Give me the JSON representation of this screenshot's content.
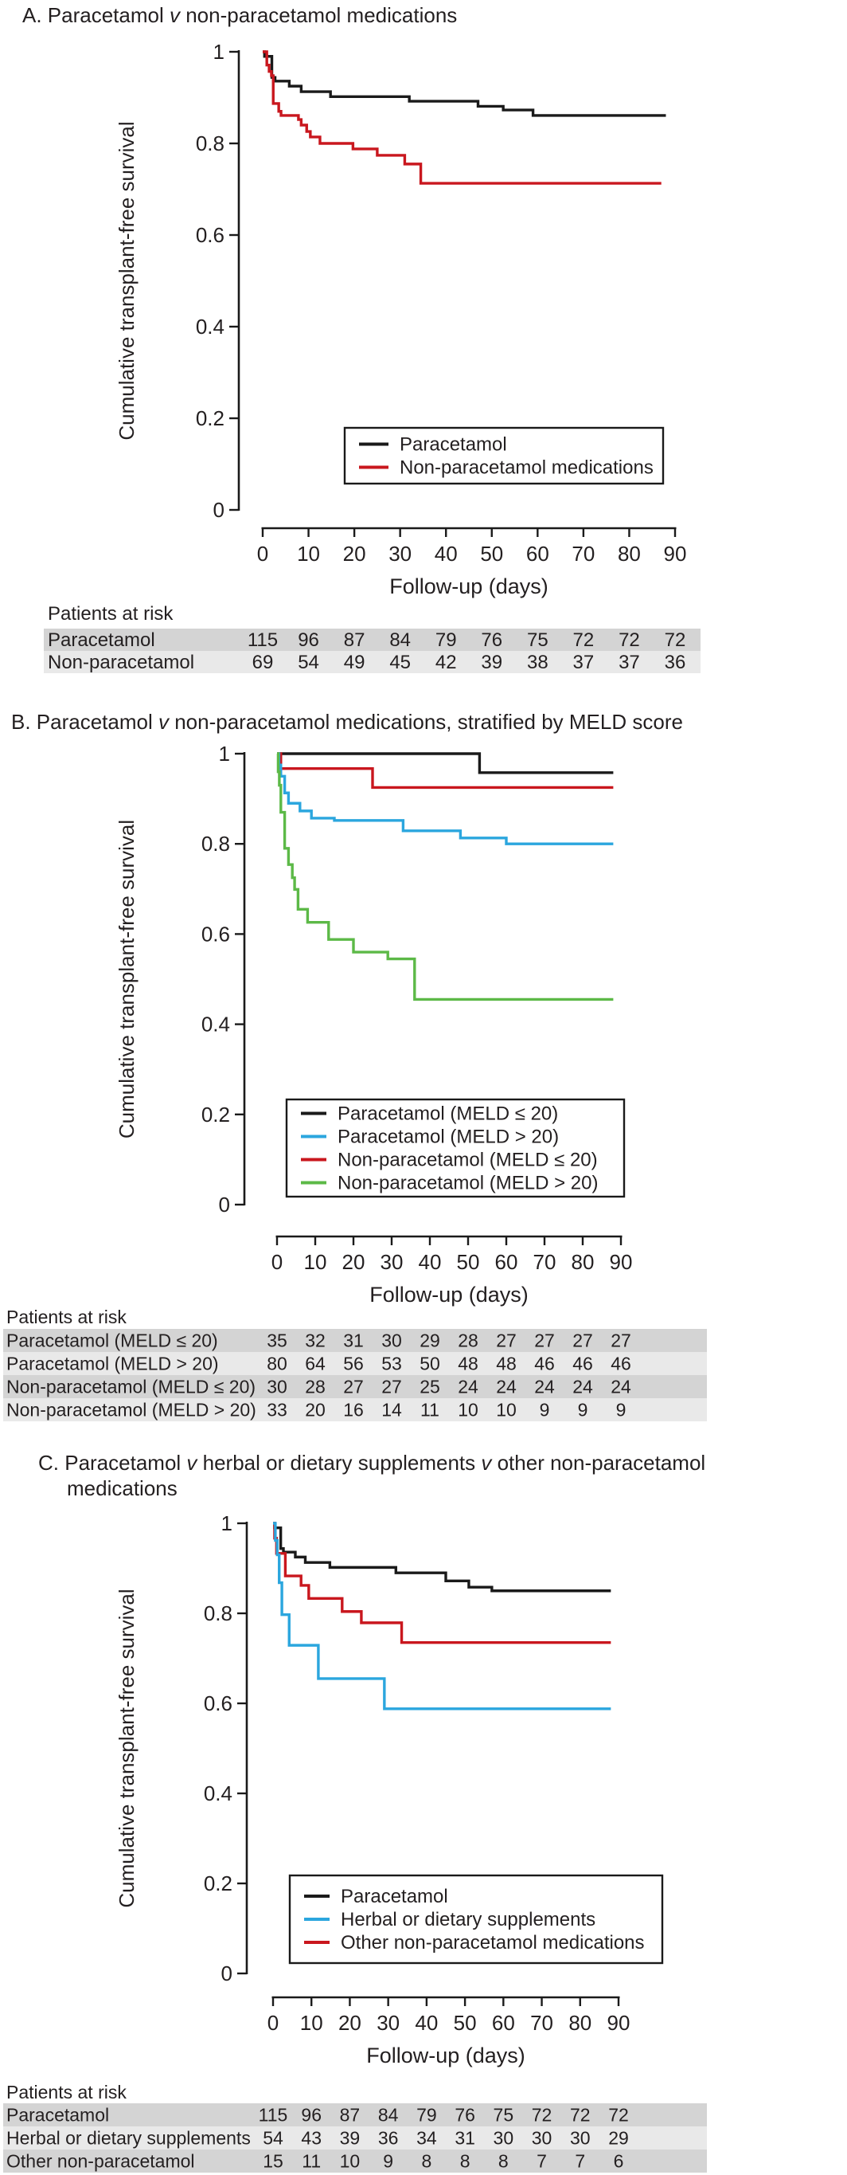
{
  "figure_type": "kaplan-meier-survival-figure",
  "colors": {
    "black": "#1a1a1a",
    "red": "#c9171e",
    "blue": "#2ba6de",
    "green": "#5cb947",
    "text": "#231f20",
    "row_dark": "#d4d4d4",
    "row_light": "#e9e9e9",
    "axis": "#1a1a1a"
  },
  "chart_data": [
    {
      "id": "A",
      "type": "line",
      "title_lines": [
        [
          {
            "text": "A. Paracetamol "
          },
          {
            "text": "v",
            "italic": true
          },
          {
            "text": " non-paracetamol medications"
          }
        ]
      ],
      "ylabel": "Cumulative transplant-free survival",
      "xlabel": "Follow-up (days)",
      "ylim": [
        0,
        1
      ],
      "yticks": [
        {
          "v": 1,
          "label": "1"
        },
        {
          "v": 0.8,
          "label": "0.8"
        },
        {
          "v": 0.6,
          "label": "0.6"
        },
        {
          "v": 0.4,
          "label": "0.4"
        },
        {
          "v": 0.2,
          "label": "0.2"
        },
        {
          "v": 0,
          "label": "0"
        }
      ],
      "xticks": [
        0,
        10,
        20,
        30,
        40,
        50,
        60,
        70,
        80,
        90
      ],
      "series": [
        {
          "name": "Paracetamol",
          "color": "black",
          "end_day": 88,
          "steps": [
            [
              0,
              1.0
            ],
            [
              0.4,
              0.99
            ],
            [
              2,
              0.944
            ],
            [
              2.7,
              0.936
            ],
            [
              5.8,
              0.925
            ],
            [
              8.4,
              0.913
            ],
            [
              14.8,
              0.902
            ],
            [
              32,
              0.892
            ],
            [
              47,
              0.881
            ],
            [
              52.5,
              0.873
            ],
            [
              59,
              0.861
            ]
          ]
        },
        {
          "name": "Non-paracetamol medications",
          "color": "red",
          "end_day": 87,
          "steps": [
            [
              0,
              1.0
            ],
            [
              0.9,
              0.971
            ],
            [
              1.4,
              0.957
            ],
            [
              1.9,
              0.948
            ],
            [
              2.3,
              0.887
            ],
            [
              3.5,
              0.87
            ],
            [
              4,
              0.861
            ],
            [
              7.8,
              0.852
            ],
            [
              8.4,
              0.84
            ],
            [
              9.6,
              0.826
            ],
            [
              10.4,
              0.814
            ],
            [
              12.5,
              0.8
            ],
            [
              19.7,
              0.788
            ],
            [
              25,
              0.774
            ],
            [
              31,
              0.755
            ],
            [
              34.5,
              0.713
            ]
          ]
        }
      ],
      "legend": [
        {
          "label": "Paracetamol",
          "color": "black"
        },
        {
          "label": "Non-paracetamol medications",
          "color": "red"
        }
      ],
      "risk_table": {
        "header": "Patients at risk",
        "rows": [
          {
            "label": "Paracetamol",
            "values": [
              115,
              96,
              87,
              84,
              79,
              76,
              75,
              72,
              72,
              72
            ]
          },
          {
            "label": "Non-paracetamol",
            "values": [
              69,
              54,
              49,
              45,
              42,
              39,
              38,
              37,
              37,
              36
            ]
          }
        ]
      }
    },
    {
      "id": "B",
      "type": "line",
      "title_lines": [
        [
          {
            "text": "B. Paracetamol "
          },
          {
            "text": "v",
            "italic": true
          },
          {
            "text": " non-paracetamol medications, stratified by MELD score"
          }
        ]
      ],
      "ylabel": "Cumulative transplant-free survival",
      "xlabel": "Follow-up (days)",
      "ylim": [
        0,
        1
      ],
      "yticks": [
        {
          "v": 1,
          "label": "1"
        },
        {
          "v": 0.8,
          "label": "0.8"
        },
        {
          "v": 0.6,
          "label": "0.6"
        },
        {
          "v": 0.4,
          "label": "0.4"
        },
        {
          "v": 0.2,
          "label": "0.2"
        },
        {
          "v": 0,
          "label": "0"
        }
      ],
      "xticks": [
        0,
        10,
        20,
        30,
        40,
        50,
        60,
        70,
        80,
        90
      ],
      "series": [
        {
          "name": "Paracetamol (MELD ≤ 20)",
          "color": "black",
          "end_day": 88,
          "steps": [
            [
              0,
              1.0
            ],
            [
              53,
              0.958
            ]
          ]
        },
        {
          "name": "Non-paracetamol (MELD ≤ 20)",
          "color": "red",
          "end_day": 88,
          "steps": [
            [
              0,
              1.0
            ],
            [
              1,
              0.967
            ],
            [
              25,
              0.925
            ]
          ]
        },
        {
          "name": "Paracetamol (MELD > 20)",
          "color": "blue",
          "end_day": 88,
          "steps": [
            [
              0,
              1.0
            ],
            [
              0.5,
              0.975
            ],
            [
              1,
              0.95
            ],
            [
              2,
              0.913
            ],
            [
              3,
              0.89
            ],
            [
              6,
              0.873
            ],
            [
              9,
              0.857
            ],
            [
              15,
              0.852
            ],
            [
              33,
              0.829
            ],
            [
              48,
              0.813
            ],
            [
              60,
              0.8
            ]
          ]
        },
        {
          "name": "Non-paracetamol (MELD > 20)",
          "color": "green",
          "end_day": 88,
          "steps": [
            [
              0,
              1.0
            ],
            [
              0.3,
              0.96
            ],
            [
              0.6,
              0.93
            ],
            [
              1,
              0.87
            ],
            [
              2,
              0.79
            ],
            [
              3,
              0.754
            ],
            [
              4,
              0.725
            ],
            [
              4.6,
              0.699
            ],
            [
              5.5,
              0.655
            ],
            [
              8,
              0.626
            ],
            [
              13.5,
              0.588
            ],
            [
              20,
              0.56
            ],
            [
              29,
              0.545
            ],
            [
              36,
              0.455
            ]
          ]
        }
      ],
      "legend": [
        {
          "label": "Paracetamol (MELD ≤ 20)",
          "color": "black"
        },
        {
          "label": "Paracetamol (MELD > 20)",
          "color": "blue"
        },
        {
          "label": "Non-paracetamol (MELD ≤ 20)",
          "color": "red"
        },
        {
          "label": "Non-paracetamol (MELD > 20)",
          "color": "green"
        }
      ],
      "risk_table": {
        "header": "Patients at risk",
        "rows": [
          {
            "label": "Paracetamol (MELD ≤ 20)",
            "values": [
              35,
              32,
              31,
              30,
              29,
              28,
              27,
              27,
              27,
              27
            ]
          },
          {
            "label": "Paracetamol (MELD > 20)",
            "values": [
              80,
              64,
              56,
              53,
              50,
              48,
              48,
              46,
              46,
              46
            ]
          },
          {
            "label": "Non-paracetamol (MELD ≤ 20)",
            "values": [
              30,
              28,
              27,
              27,
              25,
              24,
              24,
              24,
              24,
              24
            ]
          },
          {
            "label": "Non-paracetamol (MELD > 20)",
            "values": [
              33,
              20,
              16,
              14,
              11,
              10,
              10,
              9,
              9,
              9
            ]
          }
        ]
      }
    },
    {
      "id": "C",
      "type": "line",
      "title_lines": [
        [
          {
            "text": "C. Paracetamol "
          },
          {
            "text": "v",
            "italic": true
          },
          {
            "text": " herbal or dietary supplements "
          },
          {
            "text": "v",
            "italic": true
          },
          {
            "text": " other non-paracetamol"
          }
        ],
        [
          {
            "text": "medications"
          }
        ]
      ],
      "ylabel": "Cumulative transplant-free survival",
      "xlabel": "Follow-up (days)",
      "ylim": [
        0,
        1
      ],
      "yticks": [
        {
          "v": 1,
          "label": "1"
        },
        {
          "v": 0.8,
          "label": "0.8"
        },
        {
          "v": 0.6,
          "label": "0.6"
        },
        {
          "v": 0.4,
          "label": "0.4"
        },
        {
          "v": 0.2,
          "label": "0.2"
        },
        {
          "v": 0,
          "label": "0"
        }
      ],
      "xticks": [
        0,
        10,
        20,
        30,
        40,
        50,
        60,
        70,
        80,
        90
      ],
      "series": [
        {
          "name": "Paracetamol",
          "color": "black",
          "end_day": 88,
          "steps": [
            [
              0,
              1.0
            ],
            [
              0.4,
              0.99
            ],
            [
              2,
              0.944
            ],
            [
              2.7,
              0.936
            ],
            [
              5.8,
              0.925
            ],
            [
              8.4,
              0.913
            ],
            [
              14.8,
              0.902
            ],
            [
              32,
              0.89
            ],
            [
              45,
              0.872
            ],
            [
              51,
              0.858
            ],
            [
              57,
              0.85
            ]
          ]
        },
        {
          "name": "Other non-paracetamol medications",
          "color": "red",
          "end_day": 88,
          "steps": [
            [
              0,
              1.0
            ],
            [
              0.4,
              0.967
            ],
            [
              0.9,
              0.933
            ],
            [
              3.2,
              0.883
            ],
            [
              7.3,
              0.862
            ],
            [
              9.3,
              0.833
            ],
            [
              18,
              0.804
            ],
            [
              23,
              0.779
            ],
            [
              33.5,
              0.735
            ]
          ]
        },
        {
          "name": "Herbal or dietary supplements",
          "color": "blue",
          "end_day": 88,
          "steps": [
            [
              0,
              1.0
            ],
            [
              0.6,
              0.962
            ],
            [
              1.1,
              0.93
            ],
            [
              1.6,
              0.868
            ],
            [
              2.3,
              0.797
            ],
            [
              4.2,
              0.729
            ],
            [
              11.8,
              0.655
            ],
            [
              29,
              0.588
            ]
          ]
        }
      ],
      "legend": [
        {
          "label": "Paracetamol",
          "color": "black"
        },
        {
          "label": "Herbal or dietary supplements",
          "color": "blue"
        },
        {
          "label": "Other non-paracetamol medications",
          "color": "red"
        }
      ],
      "risk_table": {
        "header": "Patients at risk",
        "rows": [
          {
            "label": "Paracetamol",
            "values": [
              115,
              96,
              87,
              84,
              79,
              76,
              75,
              72,
              72,
              72
            ]
          },
          {
            "label": "Herbal or dietary supplements",
            "values": [
              54,
              43,
              39,
              36,
              34,
              31,
              30,
              30,
              30,
              29
            ]
          },
          {
            "label": "Other non-paracetamol",
            "values": [
              15,
              11,
              10,
              9,
              8,
              8,
              8,
              7,
              7,
              6
            ]
          }
        ]
      }
    }
  ]
}
